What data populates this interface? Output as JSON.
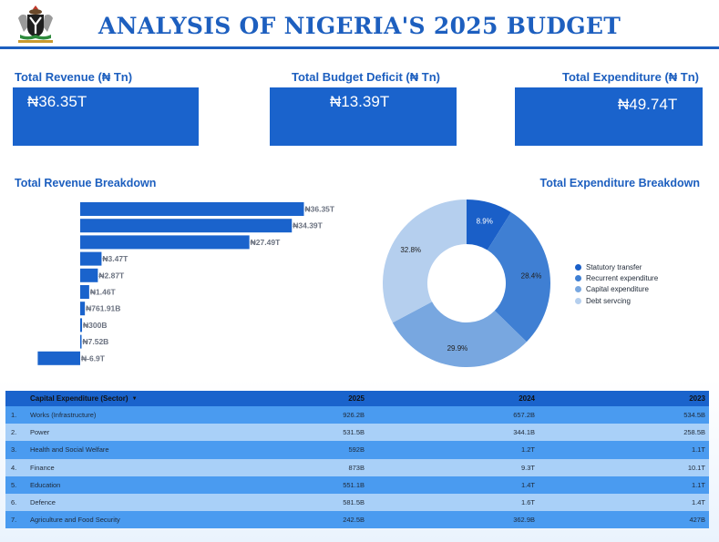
{
  "header": {
    "title": "ANALYSIS OF NIGERIA'S 2025 BUDGET"
  },
  "kpis": [
    {
      "label": "Total Revenue (₦ Tn)",
      "value": "₦36.35T"
    },
    {
      "label": "Total Budget Deficit (₦ Tn)",
      "value": "₦13.39T"
    },
    {
      "label": "Total Expenditure (₦ Tn)",
      "value": "₦49.74T"
    }
  ],
  "sections": {
    "revenue_title": "Total Revenue Breakdown",
    "expenditure_title": "Total Expenditure Breakdown"
  },
  "colors": {
    "primary": "#1a63cc",
    "title": "#1d5fbf",
    "row_dark": "#4a9bf0",
    "row_light": "#a9d0f8"
  },
  "chart_data": [
    {
      "type": "bar",
      "orientation": "horizontal",
      "title": "Total Revenue Breakdown",
      "values": [
        36.35,
        34.39,
        27.49,
        3.47,
        2.87,
        1.46,
        0.76191,
        0.3,
        0.00752,
        -6.9
      ],
      "data_labels": [
        "₦36.35T",
        "₦34.39T",
        "₦27.49T",
        "₦3.47T",
        "₦2.87T",
        "₦1.46T",
        "₦761.91B",
        "₦300B",
        "₦7.52B",
        "₦-6.9T"
      ],
      "unit": "₦ Tn",
      "color": "#1a63cc"
    },
    {
      "type": "pie",
      "variant": "donut",
      "title": "Total Expenditure Breakdown",
      "series": [
        {
          "name": "Statutory transfer",
          "value": 8.9,
          "label": "8.9%",
          "color": "#1a5fc8"
        },
        {
          "name": "Recurrent expenditure",
          "value": 28.4,
          "label": "28.4%",
          "color": "#3f7fd3"
        },
        {
          "name": "Capital expenditure",
          "value": 29.9,
          "label": "29.9%",
          "color": "#78a7e0"
        },
        {
          "name": "Debt servcing",
          "value": 32.8,
          "label": "32.8%",
          "color": "#b5cfee"
        }
      ],
      "legend_position": "right"
    }
  ],
  "table": {
    "headers": [
      "Capital Expenditure (Sector)",
      "2025",
      "2024",
      "2023"
    ],
    "rows": [
      {
        "idx": "1.",
        "name": "Works (Infrastructure)",
        "y2025": "926.2B",
        "y2024": "657.2B",
        "y2023": "534.5B"
      },
      {
        "idx": "2.",
        "name": "Power",
        "y2025": "531.5B",
        "y2024": "344.1B",
        "y2023": "258.5B"
      },
      {
        "idx": "3.",
        "name": "Health and Social Welfare",
        "y2025": "592B",
        "y2024": "1.2T",
        "y2023": "1.1T"
      },
      {
        "idx": "4.",
        "name": "Finance",
        "y2025": "873B",
        "y2024": "9.3T",
        "y2023": "10.1T"
      },
      {
        "idx": "5.",
        "name": "Education",
        "y2025": "551.1B",
        "y2024": "1.4T",
        "y2023": "1.1T"
      },
      {
        "idx": "6.",
        "name": "Defence",
        "y2025": "581.5B",
        "y2024": "1.6T",
        "y2023": "1.4T"
      },
      {
        "idx": "7.",
        "name": "Agriculture and Food Security",
        "y2025": "242.5B",
        "y2024": "362.9B",
        "y2023": "427B"
      }
    ]
  }
}
